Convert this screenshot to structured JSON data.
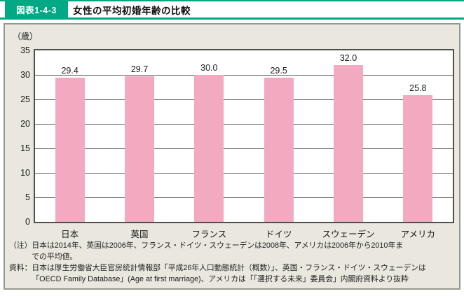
{
  "header": {
    "figure_number": "図表1-4-3",
    "title": "女性の平均初婚年齢の比較"
  },
  "colors": {
    "accent_teal": "#00a883",
    "bar_pink": "#f3aac1",
    "panel_background": "#e9e7de",
    "plot_border": "#4f4f4f"
  },
  "chart_data": {
    "type": "bar",
    "title": "女性の平均初婚年齢の比較",
    "unit_label": "（歳）",
    "xlabel": "",
    "ylabel": "（歳）",
    "categories": [
      "日本",
      "英国",
      "フランス",
      "ドイツ",
      "スウェーデン",
      "アメリカ"
    ],
    "values": [
      29.4,
      29.7,
      30.0,
      29.5,
      32.0,
      25.8
    ],
    "value_labels": [
      "29.4",
      "29.7",
      "30.0",
      "29.5",
      "32.0",
      "25.8"
    ],
    "ylim": [
      0,
      35
    ],
    "yticks": [
      35,
      30,
      25,
      20,
      15,
      10,
      5,
      0
    ],
    "grid": true,
    "legend": "none",
    "bar_color": "#f3aac1"
  },
  "notes": {
    "note_label": "（注）",
    "note_lines": [
      "日本は2014年、英国は2006年、フランス・ドイツ・スウェーデンは2008年、アメリカは2006年から2010年ま",
      "での平均値。"
    ],
    "source_label": "資料：",
    "source_lines": [
      "日本は厚生労働省大臣官房統計情報部「平成26年人口動態統計（概数）」、英国・フランス・ドイツ・スウェーデンは",
      "「OECD Family Database」(Age at first marriage)、アメリカは「「選択する未来」委員会」内閣府資料より抜粋"
    ]
  }
}
